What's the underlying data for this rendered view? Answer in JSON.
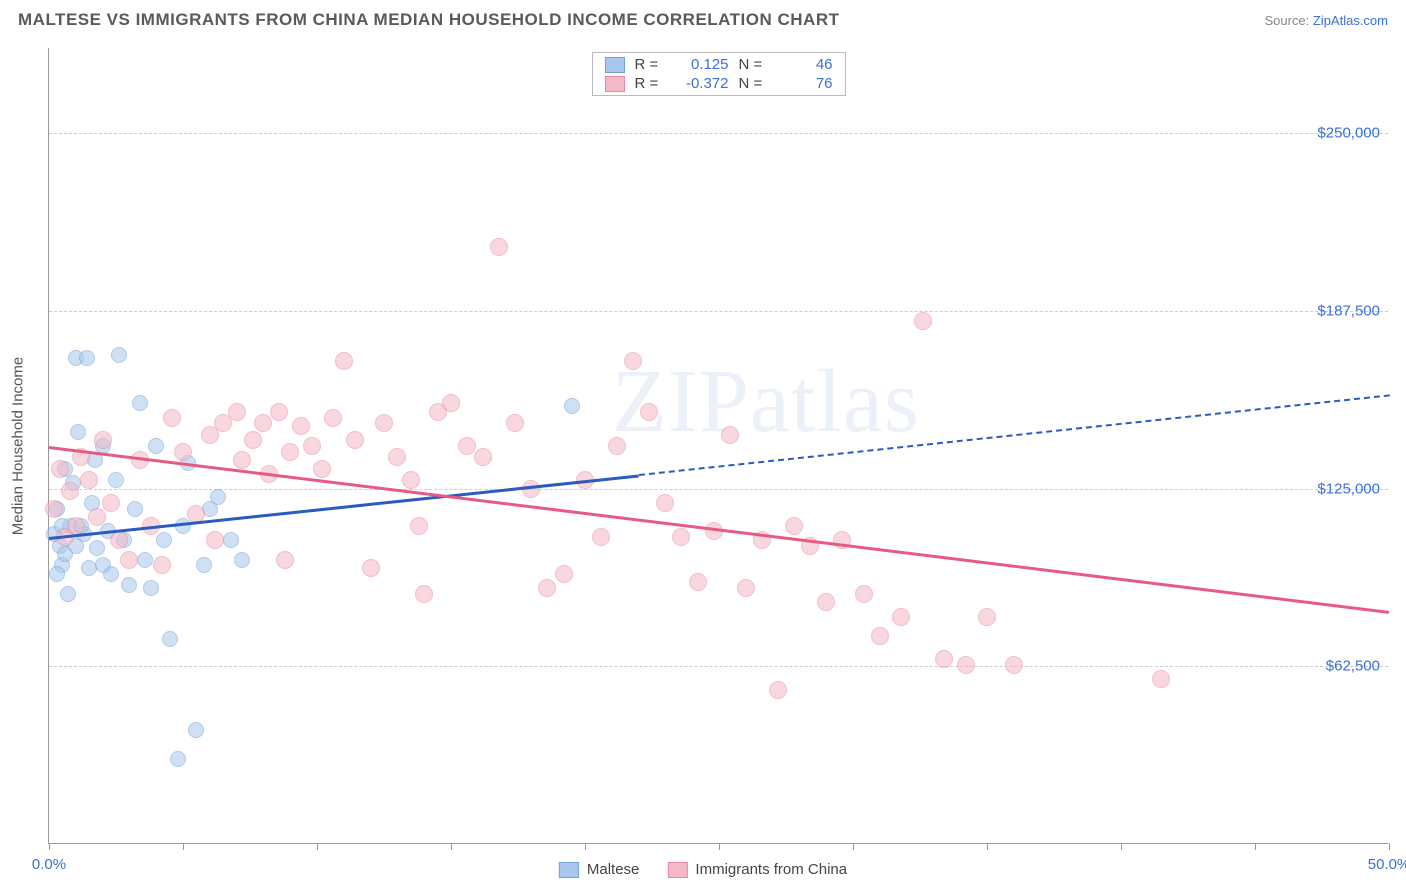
{
  "title": "MALTESE VS IMMIGRANTS FROM CHINA MEDIAN HOUSEHOLD INCOME CORRELATION CHART",
  "source_prefix": "Source: ",
  "source_link": "ZipAtlas.com",
  "y_axis_label": "Median Household Income",
  "watermark": "ZIPatlas",
  "chart": {
    "type": "scatter",
    "xlim": [
      0,
      50
    ],
    "ylim": [
      0,
      280000
    ],
    "x_ticks": [
      0,
      5,
      10,
      15,
      20,
      25,
      30,
      35,
      40,
      45,
      50
    ],
    "x_tick_labels": {
      "0": "0.0%",
      "50": "50.0%"
    },
    "y_gridlines": [
      62500,
      125000,
      187500,
      250000
    ],
    "y_tick_labels": [
      "$62,500",
      "$125,000",
      "$187,500",
      "$250,000"
    ],
    "background_color": "#ffffff",
    "grid_color": "#cccccc",
    "axis_color": "#999999",
    "tick_label_color": "#3b6fd8",
    "series": [
      {
        "name": "Maltese",
        "fill": "#a9c7ec",
        "stroke": "#6fa0db",
        "fill_opacity": 0.55,
        "marker_size": 16,
        "R": "0.125",
        "N": "46",
        "trend": {
          "x1": 0,
          "y1": 108000,
          "x2": 50,
          "y2": 158000,
          "solid_until_x": 22,
          "color": "#2a5bc0"
        },
        "points": [
          [
            0.3,
            118000
          ],
          [
            0.4,
            105000
          ],
          [
            0.5,
            98000
          ],
          [
            0.6,
            132000
          ],
          [
            0.7,
            88000
          ],
          [
            0.8,
            112000
          ],
          [
            1.0,
            171000
          ],
          [
            1.4,
            171000
          ],
          [
            1.1,
            145000
          ],
          [
            1.3,
            109000
          ],
          [
            1.5,
            97000
          ],
          [
            1.6,
            120000
          ],
          [
            1.8,
            104000
          ],
          [
            2.0,
            140000
          ],
          [
            2.2,
            110000
          ],
          [
            2.3,
            95000
          ],
          [
            2.5,
            128000
          ],
          [
            2.8,
            107000
          ],
          [
            3.0,
            91000
          ],
          [
            3.2,
            118000
          ],
          [
            3.4,
            155000
          ],
          [
            3.6,
            100000
          ],
          [
            3.8,
            90000
          ],
          [
            4.0,
            140000
          ],
          [
            4.3,
            107000
          ],
          [
            4.5,
            72000
          ],
          [
            4.8,
            30000
          ],
          [
            5.0,
            112000
          ],
          [
            5.2,
            134000
          ],
          [
            5.5,
            40000
          ],
          [
            5.8,
            98000
          ],
          [
            6.0,
            118000
          ],
          [
            6.3,
            122000
          ],
          [
            6.8,
            107000
          ],
          [
            7.2,
            100000
          ],
          [
            0.9,
            127000
          ],
          [
            1.7,
            135000
          ],
          [
            2.6,
            172000
          ],
          [
            0.6,
            102000
          ],
          [
            0.2,
            109000
          ],
          [
            0.3,
            95000
          ],
          [
            0.5,
            112000
          ],
          [
            19.5,
            154000
          ],
          [
            2.0,
            98000
          ],
          [
            1.2,
            112000
          ],
          [
            1.0,
            105000
          ]
        ]
      },
      {
        "name": "Immigrants from China",
        "fill": "#f5b8c6",
        "stroke": "#e88aa2",
        "fill_opacity": 0.55,
        "marker_size": 18,
        "R": "-0.372",
        "N": "76",
        "trend": {
          "x1": 0,
          "y1": 140000,
          "x2": 50,
          "y2": 82000,
          "solid_until_x": 50,
          "color": "#e85a82"
        },
        "points": [
          [
            0.2,
            118000
          ],
          [
            0.4,
            132000
          ],
          [
            0.6,
            108000
          ],
          [
            0.8,
            124000
          ],
          [
            1.0,
            112000
          ],
          [
            1.2,
            136000
          ],
          [
            1.5,
            128000
          ],
          [
            1.8,
            115000
          ],
          [
            2.0,
            142000
          ],
          [
            2.3,
            120000
          ],
          [
            2.6,
            107000
          ],
          [
            3.0,
            100000
          ],
          [
            3.4,
            135000
          ],
          [
            3.8,
            112000
          ],
          [
            4.2,
            98000
          ],
          [
            4.6,
            150000
          ],
          [
            5.0,
            138000
          ],
          [
            5.5,
            116000
          ],
          [
            6.0,
            144000
          ],
          [
            6.5,
            148000
          ],
          [
            7.0,
            152000
          ],
          [
            7.2,
            135000
          ],
          [
            7.6,
            142000
          ],
          [
            8.0,
            148000
          ],
          [
            8.2,
            130000
          ],
          [
            8.6,
            152000
          ],
          [
            9.0,
            138000
          ],
          [
            9.4,
            147000
          ],
          [
            9.8,
            140000
          ],
          [
            10.2,
            132000
          ],
          [
            10.6,
            150000
          ],
          [
            11.0,
            170000
          ],
          [
            11.4,
            142000
          ],
          [
            12.0,
            97000
          ],
          [
            12.5,
            148000
          ],
          [
            13.0,
            136000
          ],
          [
            13.5,
            128000
          ],
          [
            14.0,
            88000
          ],
          [
            14.5,
            152000
          ],
          [
            15.0,
            155000
          ],
          [
            15.6,
            140000
          ],
          [
            16.2,
            136000
          ],
          [
            16.8,
            210000
          ],
          [
            17.4,
            148000
          ],
          [
            18.0,
            125000
          ],
          [
            18.6,
            90000
          ],
          [
            19.2,
            95000
          ],
          [
            20.0,
            128000
          ],
          [
            20.6,
            108000
          ],
          [
            21.2,
            140000
          ],
          [
            21.8,
            170000
          ],
          [
            22.4,
            152000
          ],
          [
            23.0,
            120000
          ],
          [
            23.6,
            108000
          ],
          [
            24.2,
            92000
          ],
          [
            24.8,
            110000
          ],
          [
            25.4,
            144000
          ],
          [
            26.0,
            90000
          ],
          [
            26.6,
            107000
          ],
          [
            27.2,
            54000
          ],
          [
            27.8,
            112000
          ],
          [
            28.4,
            105000
          ],
          [
            29.0,
            85000
          ],
          [
            29.6,
            107000
          ],
          [
            30.4,
            88000
          ],
          [
            31.0,
            73000
          ],
          [
            31.8,
            80000
          ],
          [
            32.6,
            184000
          ],
          [
            33.4,
            65000
          ],
          [
            34.2,
            63000
          ],
          [
            35.0,
            80000
          ],
          [
            36.0,
            63000
          ],
          [
            41.5,
            58000
          ],
          [
            8.8,
            100000
          ],
          [
            6.2,
            107000
          ],
          [
            13.8,
            112000
          ]
        ]
      }
    ]
  },
  "legend_bottom": [
    {
      "swatch_fill": "#a9c7ec",
      "swatch_stroke": "#6fa0db",
      "label": "Maltese"
    },
    {
      "swatch_fill": "#f5b8c6",
      "swatch_stroke": "#e88aa2",
      "label": "Immigrants from China"
    }
  ]
}
